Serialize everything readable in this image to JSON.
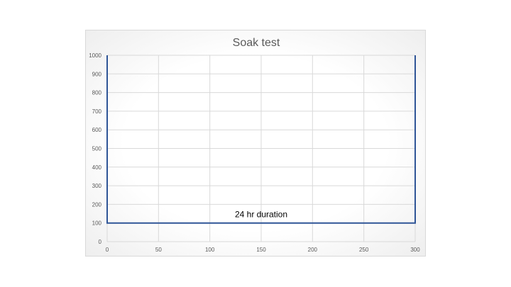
{
  "chart_data": {
    "type": "line",
    "title": "Soak test",
    "xlabel": "",
    "ylabel": "",
    "xlim": [
      0,
      300
    ],
    "ylim": [
      0,
      1000
    ],
    "x_ticks": [
      0,
      50,
      100,
      150,
      200,
      250,
      300
    ],
    "y_ticks": [
      0,
      100,
      200,
      300,
      400,
      500,
      600,
      700,
      800,
      900,
      1000
    ],
    "grid": true,
    "legend": "none",
    "series": [
      {
        "x": [
          0,
          0,
          300,
          300
        ],
        "y": [
          1000,
          100,
          100,
          1000
        ],
        "color": "#2f5597"
      }
    ],
    "annotations": [
      {
        "text": "24 hr duration",
        "x": 150,
        "y": 100,
        "position": "above"
      }
    ]
  }
}
